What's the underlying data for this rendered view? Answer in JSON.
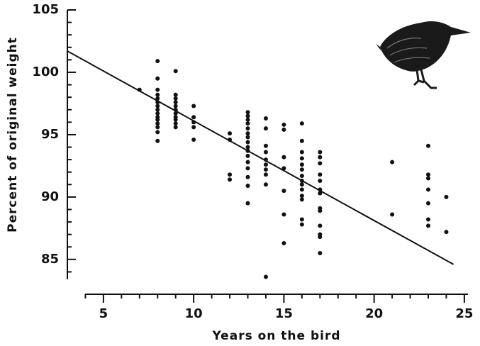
{
  "chart_data": {
    "type": "scatter",
    "x_label": "Years on the bird",
    "y_label": "Percent of original weight",
    "color": "#111111",
    "xlim": [
      3,
      25.2
    ],
    "ylim": [
      83.4,
      105
    ],
    "xticks": [
      5,
      10,
      15,
      20,
      25
    ],
    "yticks": [
      85,
      90,
      95,
      100,
      105
    ],
    "xminorticks": [
      4,
      6,
      7,
      8,
      9,
      11,
      12,
      13,
      14,
      16,
      17,
      18,
      19,
      21,
      22,
      23,
      24
    ],
    "yminorticks": [
      84,
      86,
      87,
      88,
      89,
      91,
      92,
      93,
      94,
      96,
      97,
      98,
      99,
      101,
      102,
      103,
      104
    ],
    "series": [
      {
        "x": [
          7,
          8,
          8,
          8,
          8,
          8,
          8,
          8,
          8,
          8,
          8,
          8,
          8,
          8,
          8,
          8,
          9,
          9,
          9,
          9,
          9,
          9,
          9,
          9,
          9,
          9,
          9,
          10,
          10,
          10,
          10,
          10,
          12,
          12,
          12,
          12,
          13,
          13,
          13,
          13,
          13,
          13,
          13,
          13,
          13,
          13,
          13,
          13,
          13,
          13,
          13,
          13,
          14,
          14,
          14,
          14,
          14,
          14,
          14,
          14,
          14,
          14,
          15,
          15,
          15,
          15,
          15,
          15,
          15,
          16,
          16,
          16,
          16,
          16,
          16,
          16,
          16,
          16,
          16,
          16,
          16,
          16,
          16,
          17,
          17,
          17,
          17,
          17,
          17,
          17,
          17,
          17,
          17,
          17,
          17,
          17,
          21,
          21,
          23,
          23,
          23,
          23,
          23,
          23,
          23,
          24,
          24
        ],
        "values": [
          98.6,
          100.9,
          99.5,
          98.6,
          98.2,
          97.9,
          97.6,
          97.3,
          97.0,
          96.7,
          96.4,
          96.2,
          95.9,
          95.6,
          95.2,
          94.5,
          100.1,
          98.2,
          97.9,
          97.6,
          97.3,
          97.0,
          96.7,
          96.4,
          96.2,
          95.9,
          95.6,
          97.3,
          96.4,
          96.0,
          95.6,
          94.6,
          95.1,
          94.6,
          91.8,
          91.4,
          96.8,
          96.5,
          96.2,
          95.9,
          95.5,
          95.1,
          94.8,
          94.4,
          94.0,
          93.7,
          93.3,
          92.8,
          92.3,
          91.6,
          90.9,
          89.5,
          96.3,
          95.5,
          94.1,
          93.6,
          93.0,
          92.6,
          92.2,
          91.8,
          91.0,
          83.6,
          95.8,
          95.4,
          93.2,
          92.3,
          90.5,
          88.6,
          86.3,
          95.9,
          94.5,
          93.6,
          93.1,
          92.6,
          92.2,
          91.7,
          91.3,
          91.0,
          90.6,
          90.1,
          89.8,
          88.2,
          87.8,
          93.6,
          93.2,
          92.7,
          91.8,
          91.3,
          90.6,
          90.3,
          89.1,
          88.9,
          87.7,
          87.0,
          86.8,
          85.5,
          92.8,
          88.6,
          94.1,
          91.8,
          91.5,
          90.6,
          89.5,
          88.2,
          87.7,
          90.0,
          87.2
        ]
      }
    ],
    "fit": {
      "x": [
        3.0,
        24.4
      ],
      "y": [
        101.7,
        84.6
      ]
    }
  }
}
